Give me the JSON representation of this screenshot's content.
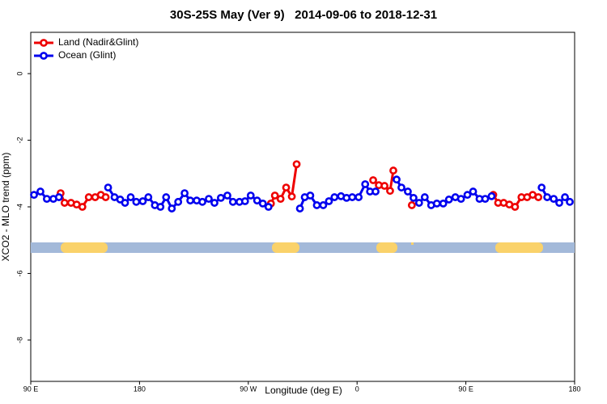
{
  "chart_data": {
    "type": "line",
    "title": "30S-25S May (Ver 9)   2014-09-06 to 2018-12-31",
    "x_label": "Longitude (deg E)",
    "y_label": "XCO2 - MLO trend (ppm)",
    "xlim": [
      90,
      540
    ],
    "xticks": [
      {
        "value": 90,
        "label": "90 E"
      },
      {
        "value": 180,
        "label": "180"
      },
      {
        "value": 270,
        "label": "90 W"
      },
      {
        "value": 360,
        "label": "0"
      },
      {
        "value": 450,
        "label": "90 E"
      },
      {
        "value": 540,
        "label": "180"
      }
    ],
    "ylim": [
      -9.24,
      1.24
    ],
    "yticks": [
      0,
      -2,
      -4,
      -6,
      -8
    ],
    "legend": "top-left",
    "series": [
      {
        "name": "Land (Nadir&Glint)",
        "color": "#ee0000",
        "x": [
          114.7,
          118,
          123.3,
          128,
          132.7,
          138,
          143.3,
          148,
          152,
          null,
          288.7,
          292,
          296.7,
          301.3,
          306,
          310,
          null,
          373.3,
          378,
          382.7,
          387.3,
          390,
          null,
          405.3,
          null,
          472.7,
          476.7,
          481.3,
          486,
          490.7,
          496,
          500.7,
          505.3,
          510
        ],
        "values": [
          -3.59,
          -3.88,
          -3.88,
          -3.93,
          -4.0,
          -3.71,
          -3.71,
          -3.64,
          -3.71,
          null,
          -3.9,
          -3.66,
          -3.76,
          -3.42,
          -3.69,
          -2.72,
          null,
          -3.2,
          -3.35,
          -3.37,
          -3.52,
          -2.91,
          null,
          -3.95,
          null,
          -3.64,
          -3.88,
          -3.88,
          -3.93,
          -4.0,
          -3.71,
          -3.71,
          -3.64,
          -3.71
        ]
      },
      {
        "name": "Ocean (Glint)",
        "color": "#0000ee",
        "x": [
          92.7,
          98,
          103.3,
          108.7,
          113.3,
          null,
          154,
          159.3,
          164,
          168,
          172.7,
          177.3,
          182.7,
          187.3,
          192.7,
          197.3,
          202,
          206.7,
          212,
          217.3,
          222,
          227.3,
          232,
          237.3,
          242,
          247.3,
          252.7,
          257.3,
          262.7,
          267.3,
          272,
          277.3,
          282,
          286.7,
          null,
          312.7,
          316.7,
          321.3,
          326.7,
          332,
          336.7,
          341.3,
          346.7,
          351.3,
          356,
          361.3,
          366.7,
          370.7,
          375.3,
          null,
          392.7,
          396.7,
          402,
          406.7,
          411.3,
          416,
          421.3,
          426,
          431.3,
          436,
          441.3,
          446,
          451.3,
          456,
          461.3,
          466,
          471.3,
          null,
          512.7,
          517.3,
          522.7,
          527.3,
          532,
          536
        ],
        "values": [
          -3.64,
          -3.54,
          -3.76,
          -3.76,
          -3.71,
          null,
          -3.42,
          -3.71,
          -3.78,
          -3.88,
          -3.71,
          -3.85,
          -3.83,
          -3.71,
          -3.95,
          -4.0,
          -3.71,
          -4.05,
          -3.85,
          -3.59,
          -3.81,
          -3.81,
          -3.85,
          -3.76,
          -3.88,
          -3.73,
          -3.66,
          -3.85,
          -3.85,
          -3.83,
          -3.66,
          -3.81,
          -3.9,
          -4.0,
          null,
          -4.05,
          -3.71,
          -3.66,
          -3.95,
          -3.95,
          -3.83,
          -3.71,
          -3.68,
          -3.73,
          -3.71,
          -3.71,
          -3.32,
          -3.54,
          -3.54,
          null,
          -3.18,
          -3.42,
          -3.54,
          -3.73,
          -3.88,
          -3.71,
          -3.95,
          -3.9,
          -3.9,
          -3.78,
          -3.71,
          -3.76,
          -3.64,
          -3.54,
          -3.76,
          -3.76,
          -3.68,
          null,
          -3.42,
          -3.71,
          -3.76,
          -3.88,
          -3.71,
          -3.85
        ]
      }
    ]
  }
}
